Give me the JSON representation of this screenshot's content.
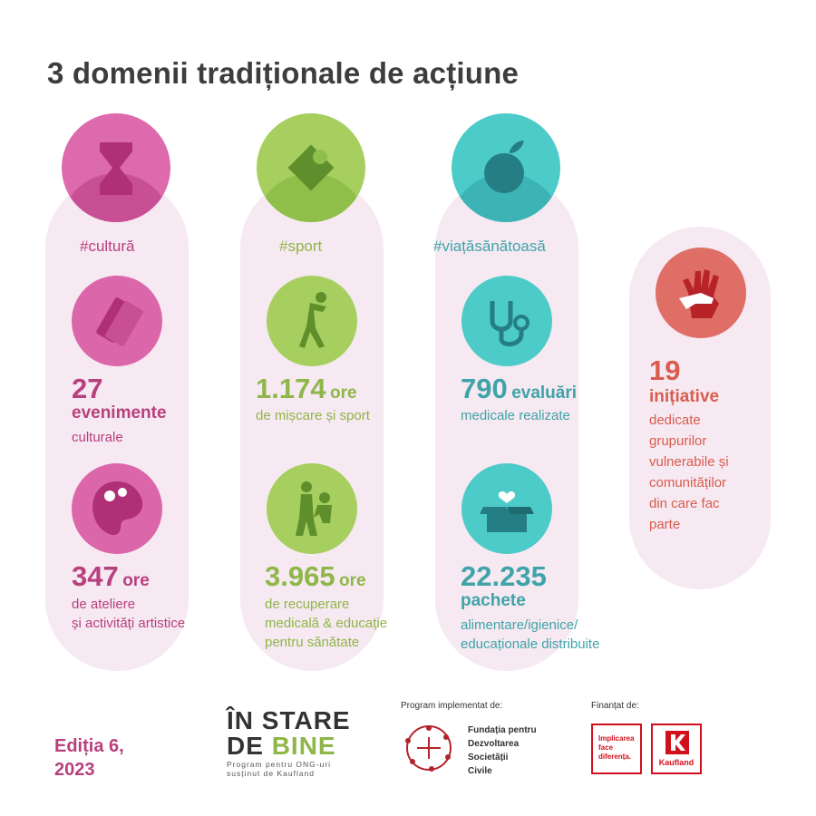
{
  "title": "3 domenii tradiționale de acțiune",
  "colors": {
    "magenta": "#b8407e",
    "green": "#8fb649",
    "teal": "#3ea4aa",
    "red": "#d95c4f",
    "pill": "#f6e9f1"
  },
  "columns": {
    "culture": {
      "tag": "#cultură",
      "icons": [
        "hourglass-icon",
        "tickets-icon",
        "palette-icon"
      ],
      "stat1": {
        "value": "27",
        "unit": "evenimente",
        "desc": "culturale"
      },
      "stat2": {
        "value": "347",
        "unit": "ore",
        "desc1": "de ateliere",
        "desc2": "și activități artistice"
      }
    },
    "sport": {
      "tag": "#sport",
      "icons": [
        "ball-field-icon",
        "exercise-person-icon",
        "recovery-therapy-icon"
      ],
      "stat1": {
        "value": "1.174",
        "unit": "ore",
        "desc": "de mișcare și sport"
      },
      "stat2": {
        "value": "3.965",
        "unit": "ore",
        "desc1": "de recuperare",
        "desc2": "medicală & educație",
        "desc3": "pentru sănătate"
      }
    },
    "health": {
      "tag": "#viațăsănătoasă",
      "icons": [
        "apple-icon",
        "stethoscope-icon",
        "package-heart-icon"
      ],
      "stat1": {
        "value": "790",
        "unit": "evaluări",
        "desc": "medicale realizate"
      },
      "stat2": {
        "value": "22.235",
        "unit": "pachete",
        "desc1": "alimentare/igienice/",
        "desc2": "educaționale distribuite"
      }
    },
    "initiatives": {
      "icon": "helping-hands-icon",
      "value": "19",
      "unit": "inițiative",
      "desc": [
        "dedicate",
        "grupurilor",
        "vulnerabile și",
        "comunităților",
        "din care fac",
        "parte"
      ]
    }
  },
  "footer": {
    "edition_line1": "Ediția 6,",
    "edition_line2": "2023",
    "logo_line1": "ÎN STARE",
    "logo_de": "DE",
    "logo_bine": "BINE",
    "logo_sub1": "Program pentru ONG-uri",
    "logo_sub2": "susținut de Kaufland",
    "implemented_label": "Program implementat de:",
    "fdsc": [
      "Fundația pentru",
      "Dezvoltarea",
      "Societății",
      "Civile"
    ],
    "financed_label": "Finanțat de:",
    "slogan": [
      "Implicarea",
      "face",
      "diferența."
    ],
    "kaufland": "Kaufland"
  }
}
